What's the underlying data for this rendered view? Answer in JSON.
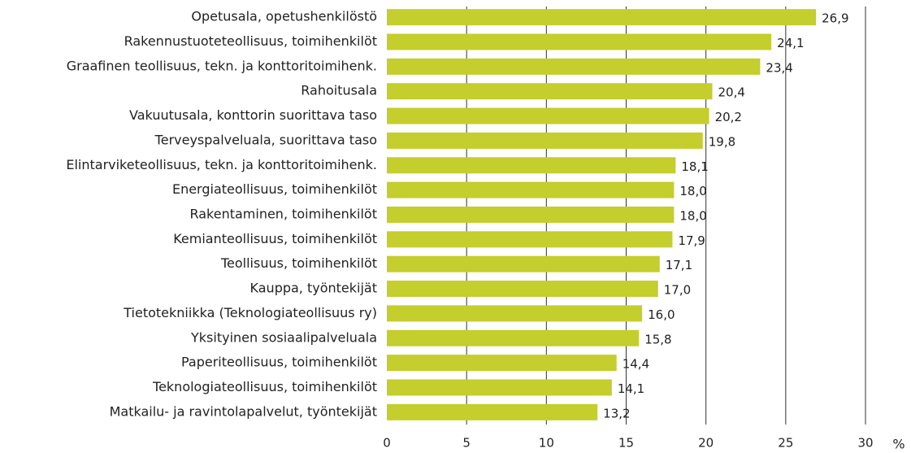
{
  "chart_data": {
    "type": "hbar",
    "categories": [
      "Opetusala, opetushenkilöstö",
      "Rakennustuoteteollisuus, toimihenkilöt",
      "Graafinen teollisuus, tekn. ja konttoritoimihenk.",
      "Rahoitusala",
      "Vakuutusala, konttorin suorittava taso",
      "Terveyspalveluala, suorittava taso",
      "Elintarviketeollisuus, tekn. ja konttoritoimihenk.",
      "Energiateollisuus, toimihenkilöt",
      "Rakentaminen, toimihenkilöt",
      "Kemianteollisuus, toimihenkilöt",
      "Teollisuus, toimihenkilöt",
      "Kauppa, työntekijät",
      "Tietotekniikka (Teknologiateollisuus ry)",
      "Yksityinen sosiaalipalveluala",
      "Paperiteollisuus, toimihenkilöt",
      "Teknologiateollisuus, toimihenkilöt",
      "Matkailu- ja ravintolapalvelut, työntekijät"
    ],
    "values": [
      26.9,
      24.1,
      23.4,
      20.4,
      20.2,
      19.8,
      18.1,
      18.0,
      18.0,
      17.9,
      17.1,
      17.0,
      16.0,
      15.8,
      14.4,
      14.1,
      13.2
    ],
    "value_labels": [
      "26,9",
      "24,1",
      "23,4",
      "20,4",
      "20,2",
      "19,8",
      "18,1",
      "18,0",
      "18,0",
      "17,9",
      "17,1",
      "17,0",
      "16,0",
      "15,8",
      "14,4",
      "14,1",
      "13,2"
    ],
    "color": "#c4ce2c",
    "x_label": "%",
    "xlim": [
      0,
      30
    ],
    "xticks": [
      0,
      5,
      10,
      15,
      20,
      25,
      30
    ],
    "grid": true
  }
}
